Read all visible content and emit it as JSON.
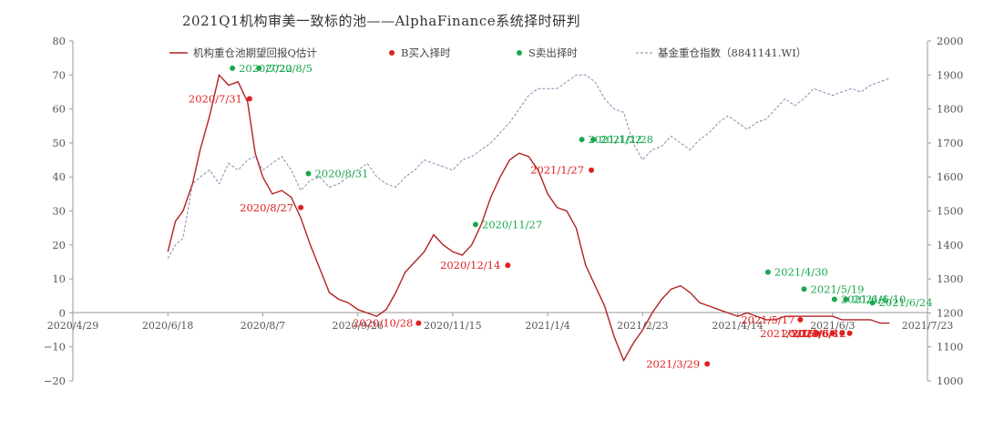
{
  "chart_data": {
    "type": "line",
    "title": "2021Q1机构审美一致标的池——AlphaFinance系统择时研判",
    "colors": {
      "main": "#b22222",
      "index": "#8a8ab0",
      "buy": "#e02020",
      "sell": "#1aa84f"
    },
    "x_ticks": [
      "2020/4/29",
      "2020/6/18",
      "2020/8/7",
      "2020/9/26",
      "2020/11/15",
      "2021/1/4",
      "2021/2/23",
      "2021/4/14",
      "2021/6/3",
      "2021/7/23"
    ],
    "y_left": {
      "ticks": [
        "80",
        "70",
        "60",
        "50",
        "40",
        "30",
        "20",
        "10",
        "0",
        "−10",
        "−20"
      ],
      "range": [
        -20,
        80
      ]
    },
    "y_right": {
      "ticks": [
        "2000",
        "1900",
        "1800",
        "1700",
        "1600",
        "1500",
        "1400",
        "1300",
        "1200",
        "1100",
        "1000"
      ],
      "range": [
        1000,
        2000
      ]
    },
    "legend": {
      "main": "机构重仓池期望回报Q估计",
      "buy": "B买入择时",
      "sell": "S卖出择时",
      "index": "基金重仓指数（8841141.WI）"
    },
    "series": [
      {
        "name": "机构重仓池期望回报Q估计",
        "axis": "left",
        "x": [
          "2020/6/18",
          "2020/6/22",
          "2020/6/26",
          "2020/7/1",
          "2020/7/5",
          "2020/7/10",
          "2020/7/15",
          "2020/7/20",
          "2020/7/25",
          "2020/7/30",
          "2020/8/3",
          "2020/8/7",
          "2020/8/12",
          "2020/8/17",
          "2020/8/22",
          "2020/8/27",
          "2020/9/1",
          "2020/9/6",
          "2020/9/11",
          "2020/9/16",
          "2020/9/21",
          "2020/9/26",
          "2020/10/1",
          "2020/10/6",
          "2020/10/11",
          "2020/10/16",
          "2020/10/21",
          "2020/10/26",
          "2020/10/31",
          "2020/11/5",
          "2020/11/10",
          "2020/11/15",
          "2020/11/20",
          "2020/11/25",
          "2020/11/30",
          "2020/12/5",
          "2020/12/10",
          "2020/12/15",
          "2020/12/20",
          "2020/12/25",
          "2020/12/30",
          "2021/1/4",
          "2021/1/9",
          "2021/1/14",
          "2021/1/19",
          "2021/1/24",
          "2021/1/29",
          "2021/2/3",
          "2021/2/8",
          "2021/2/13",
          "2021/2/18",
          "2021/2/23",
          "2021/2/28",
          "2021/3/5",
          "2021/3/10",
          "2021/3/15",
          "2021/3/20",
          "2021/3/25",
          "2021/3/30",
          "2021/4/4",
          "2021/4/9",
          "2021/4/14",
          "2021/4/19",
          "2021/4/24",
          "2021/4/29",
          "2021/5/4",
          "2021/5/9",
          "2021/5/14",
          "2021/5/19",
          "2021/5/24",
          "2021/5/29",
          "2021/6/3",
          "2021/6/8",
          "2021/6/13",
          "2021/6/18",
          "2021/6/23",
          "2021/6/28",
          "2021/7/3"
        ],
        "values": [
          18,
          27,
          30,
          38,
          48,
          58,
          70,
          67,
          68,
          62,
          47,
          40,
          35,
          36,
          34,
          28,
          20,
          13,
          6,
          4,
          3,
          1,
          0,
          -1,
          1,
          6,
          12,
          15,
          18,
          23,
          20,
          18,
          17,
          20,
          26,
          34,
          40,
          45,
          47,
          46,
          42,
          35,
          31,
          30,
          25,
          14,
          8,
          2,
          -7,
          -14,
          -9,
          -5,
          0,
          4,
          7,
          8,
          6,
          3,
          2,
          1,
          0,
          -1,
          0,
          -1,
          -2,
          -2,
          -1,
          -1,
          -1,
          -1,
          -1,
          -1,
          -2,
          -2,
          -2,
          -2,
          -3,
          -3
        ]
      },
      {
        "name": "基金重仓指数（8841141.WI）",
        "axis": "right",
        "x": [
          "2020/6/18",
          "2020/6/22",
          "2020/6/26",
          "2020/7/1",
          "2020/7/5",
          "2020/7/10",
          "2020/7/15",
          "2020/7/20",
          "2020/7/25",
          "2020/7/30",
          "2020/8/3",
          "2020/8/7",
          "2020/8/12",
          "2020/8/17",
          "2020/8/22",
          "2020/8/27",
          "2020/9/1",
          "2020/9/6",
          "2020/9/11",
          "2020/9/16",
          "2020/9/21",
          "2020/9/26",
          "2020/10/1",
          "2020/10/6",
          "2020/10/11",
          "2020/10/16",
          "2020/10/21",
          "2020/10/26",
          "2020/10/31",
          "2020/11/5",
          "2020/11/10",
          "2020/11/15",
          "2020/11/20",
          "2020/11/25",
          "2020/11/30",
          "2020/12/5",
          "2020/12/10",
          "2020/12/15",
          "2020/12/20",
          "2020/12/25",
          "2020/12/30",
          "2021/1/4",
          "2021/1/9",
          "2021/1/14",
          "2021/1/19",
          "2021/1/24",
          "2021/1/29",
          "2021/2/3",
          "2021/2/8",
          "2021/2/13",
          "2021/2/18",
          "2021/2/23",
          "2021/2/28",
          "2021/3/5",
          "2021/3/10",
          "2021/3/15",
          "2021/3/20",
          "2021/3/25",
          "2021/3/30",
          "2021/4/4",
          "2021/4/9",
          "2021/4/14",
          "2021/4/19",
          "2021/4/24",
          "2021/4/29",
          "2021/5/4",
          "2021/5/9",
          "2021/5/14",
          "2021/5/19",
          "2021/5/24",
          "2021/5/29",
          "2021/6/3",
          "2021/6/8",
          "2021/6/13",
          "2021/6/18",
          "2021/6/23",
          "2021/6/28",
          "2021/7/3"
        ],
        "values": [
          1360,
          1400,
          1420,
          1580,
          1600,
          1620,
          1580,
          1640,
          1620,
          1650,
          1660,
          1620,
          1640,
          1660,
          1620,
          1560,
          1590,
          1600,
          1570,
          1580,
          1600,
          1620,
          1640,
          1600,
          1580,
          1570,
          1600,
          1620,
          1650,
          1640,
          1630,
          1620,
          1650,
          1660,
          1680,
          1700,
          1730,
          1760,
          1800,
          1840,
          1860,
          1860,
          1860,
          1880,
          1900,
          1900,
          1880,
          1830,
          1800,
          1790,
          1700,
          1650,
          1680,
          1690,
          1720,
          1700,
          1680,
          1710,
          1730,
          1760,
          1780,
          1760,
          1740,
          1760,
          1770,
          1800,
          1830,
          1810,
          1830,
          1860,
          1850,
          1840,
          1850,
          1860,
          1850,
          1870,
          1880,
          1890
        ]
      }
    ],
    "buy_signals": [
      {
        "date": "2020/7/31",
        "value": 63,
        "label": "2020/7/31"
      },
      {
        "date": "2020/8/27",
        "value": 31,
        "label": "2020/8/27"
      },
      {
        "date": "2020/10/28",
        "value": -3,
        "label": "2020/10/28"
      },
      {
        "date": "2020/12/14",
        "value": 14,
        "label": "2020/12/14"
      },
      {
        "date": "2021/1/27",
        "value": 42,
        "label": "2021/1/27"
      },
      {
        "date": "2021/3/29",
        "value": -15,
        "label": "2021/3/29"
      },
      {
        "date": "2021/5/17",
        "value": -2,
        "label": "2021/5/17"
      },
      {
        "date": "2021/5/26",
        "value": -6,
        "label": "2021/5/26"
      },
      {
        "date": "2021/6/3",
        "value": -6,
        "label": "2021/6/3"
      },
      {
        "date": "2021/6/8",
        "value": -6,
        "label": "2021/6/8"
      },
      {
        "date": "2021/6/12",
        "value": -6,
        "label": "2021/6/12"
      }
    ],
    "sell_signals": [
      {
        "date": "2020/7/22",
        "value": 72,
        "label": "2020/7/22"
      },
      {
        "date": "2020/8/5",
        "value": 72,
        "label": "2020/8/5"
      },
      {
        "date": "2020/8/31",
        "value": 41,
        "label": "2020/8/31"
      },
      {
        "date": "2020/11/27",
        "value": 26,
        "label": "2020/11/27"
      },
      {
        "date": "2021/1/22",
        "value": 51,
        "label": "2021/1/22"
      },
      {
        "date": "2021/1/28",
        "value": 51,
        "label": "2021/1/28"
      },
      {
        "date": "2021/4/30",
        "value": 12,
        "label": "2021/4/30"
      },
      {
        "date": "2021/5/19",
        "value": 7,
        "label": "2021/5/19"
      },
      {
        "date": "2021/6/4",
        "value": 4,
        "label": "2021/6/4"
      },
      {
        "date": "2021/6/10",
        "value": 4,
        "label": "2021/6/10"
      },
      {
        "date": "2021/6/24",
        "value": 3,
        "label": "2021/6/24"
      }
    ],
    "grid": false,
    "legend_position": "top"
  }
}
